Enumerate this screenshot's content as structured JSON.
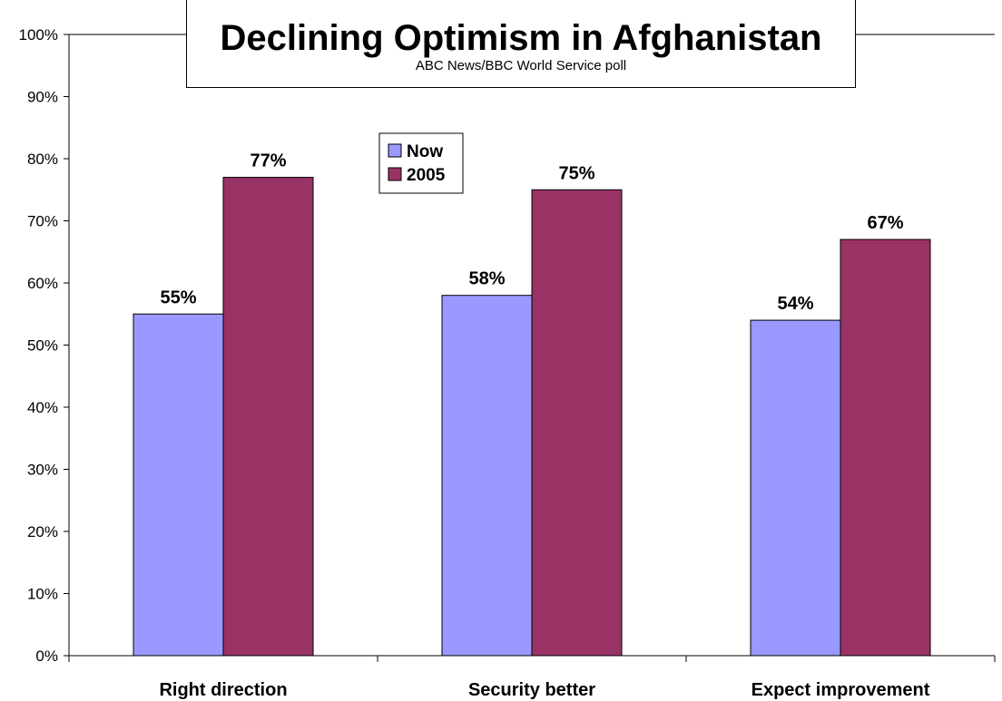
{
  "chart_data": {
    "type": "bar",
    "title": "Declining Optimism in Afghanistan",
    "subtitle": "ABC News/BBC World Service poll",
    "categories": [
      "Right direction",
      "Security better",
      "Expect improvement"
    ],
    "series": [
      {
        "name": "Now",
        "values": [
          55,
          58,
          54
        ],
        "labels": [
          "55%",
          "58%",
          "54%"
        ],
        "color": "#9999ff"
      },
      {
        "name": "2005",
        "values": [
          77,
          75,
          67
        ],
        "labels": [
          "77%",
          "75%",
          "67%"
        ],
        "color": "#993366"
      }
    ],
    "ylim": [
      0,
      100
    ],
    "yticks": [
      0,
      10,
      20,
      30,
      40,
      50,
      60,
      70,
      80,
      90,
      100
    ],
    "ytick_labels": [
      "0%",
      "10%",
      "20%",
      "30%",
      "40%",
      "50%",
      "60%",
      "70%",
      "80%",
      "90%",
      "100%"
    ],
    "xlabel": "",
    "ylabel": "",
    "grid": false,
    "legend_position": "top-center"
  }
}
